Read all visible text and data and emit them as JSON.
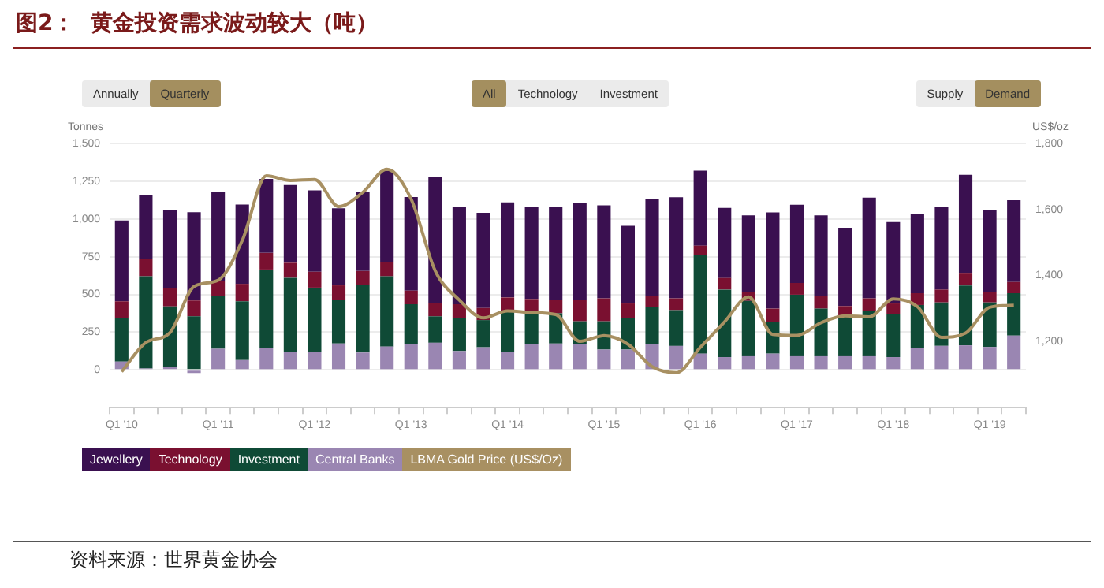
{
  "chart_data": {
    "type": "bar",
    "title": "图2：  黄金投资需求波动较大（吨）",
    "ylabel": "Tonnes",
    "y2label": "US$/oz",
    "annotations": [
      "Annually",
      "Quarterly",
      "All",
      "Technology",
      "Investment",
      "Supply",
      "Demand",
      "资料来源：世界黄金协会"
    ],
    "categories": [
      "Q1 '10",
      null,
      null,
      null,
      "Q1 '11",
      null,
      null,
      null,
      "Q1 '12",
      null,
      null,
      null,
      "Q1 '13",
      null,
      null,
      null,
      "Q1 '14",
      null,
      null,
      null,
      "Q1 '15",
      null,
      null,
      null,
      "Q1 '16",
      null,
      null,
      null,
      "Q1 '17",
      null,
      null,
      null,
      "Q1 '18",
      null,
      null,
      null,
      "Q1 '19",
      null
    ],
    "stacked": true,
    "series": [
      {
        "name": "Central Banks",
        "color": "#9a86b2",
        "values": [
          55,
          10,
          20,
          -20,
          140,
          65,
          145,
          120,
          120,
          175,
          115,
          155,
          170,
          180,
          125,
          150,
          120,
          170,
          175,
          169,
          135,
          135,
          169,
          159,
          108,
          85,
          91,
          108,
          91,
          91,
          91,
          91,
          85,
          146,
          159,
          163,
          152,
          227
        ]
      },
      {
        "name": "Investment",
        "color": "#0f4a36",
        "values": [
          290,
          610,
          400,
          355,
          350,
          390,
          520,
          490,
          425,
          290,
          445,
          465,
          265,
          175,
          220,
          180,
          265,
          210,
          200,
          153,
          187,
          210,
          247,
          237,
          654,
          447,
          366,
          207,
          407,
          315,
          271,
          298,
          287,
          284,
          288,
          396,
          295,
          281
        ]
      },
      {
        "name": "Technology",
        "color": "#7a1030",
        "values": [
          110,
          115,
          120,
          105,
          100,
          115,
          110,
          100,
          105,
          95,
          95,
          95,
          90,
          90,
          90,
          80,
          95,
          90,
          90,
          142,
          152,
          95,
          75,
          78,
          61,
          77,
          61,
          91,
          78,
          85,
          61,
          85,
          68,
          78,
          85,
          84,
          71,
          74
        ]
      },
      {
        "name": "Jewellery",
        "color": "#3a1050",
        "values": [
          535,
          425,
          520,
          585,
          590,
          525,
          490,
          515,
          540,
          510,
          525,
          605,
          620,
          835,
          645,
          630,
          630,
          610,
          615,
          643,
          616,
          515,
          643,
          670,
          497,
          464,
          505,
          637,
          518,
          532,
          518,
          667,
          539,
          525,
          548,
          650,
          538,
          542
        ]
      },
      {
        "name": "LBMA Gold Price (US$/Oz)",
        "type": "line",
        "axis": "y2",
        "color": "#a89062",
        "marker": "none",
        "values": [
          1109,
          1197,
          1227,
          1367,
          1386,
          1506,
          1702,
          1688,
          1691,
          1609,
          1652,
          1722,
          1632,
          1415,
          1326,
          1272,
          1293,
          1288,
          1282,
          1201,
          1218,
          1192,
          1124,
          1106,
          1183,
          1260,
          1335,
          1222,
          1219,
          1257,
          1278,
          1275,
          1329,
          1306,
          1213,
          1226,
          1304,
          1310
        ]
      }
    ],
    "ylim": [
      -250,
      1500
    ],
    "yticks": [
      0,
      {
        "value": 250,
        "label": "250"
      },
      {
        "value": 500,
        "label": "500"
      },
      {
        "value": 750,
        "label": "750"
      },
      {
        "value": 1000,
        "label": "1,000"
      },
      {
        "value": 1250,
        "label": "1,250"
      },
      {
        "value": 1500,
        "label": "1,500"
      }
    ],
    "y2lim": [
      1000,
      1800
    ],
    "y2ticks": [
      {
        "value": 1200,
        "label": "1,200"
      },
      {
        "value": 1400,
        "label": "1,400"
      },
      {
        "value": 1600,
        "label": "1,600"
      },
      {
        "value": 1800,
        "label": "1,800"
      }
    ],
    "grid": "y",
    "legend": "bottom left"
  }
}
